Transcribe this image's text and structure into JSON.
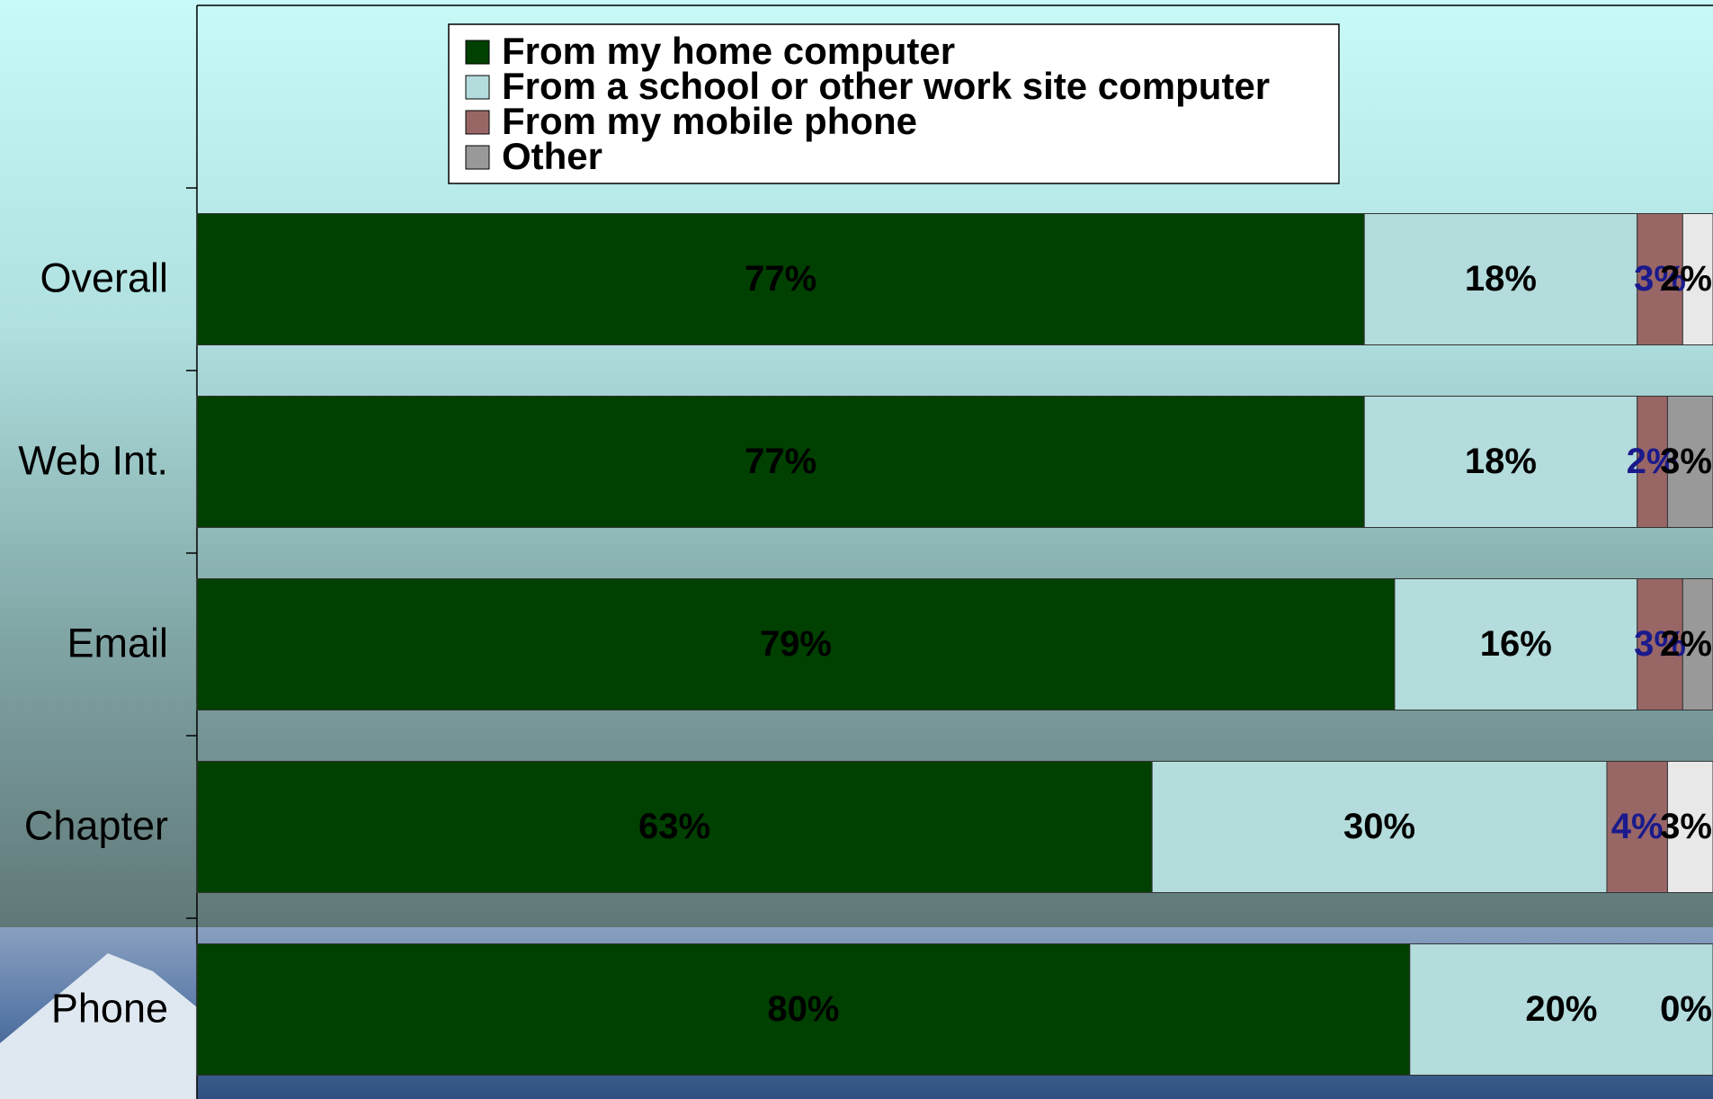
{
  "chart_data": {
    "type": "stacked-bar-horizontal",
    "categories": [
      "Overall",
      "Web Int.",
      "Email",
      "Chapter",
      "Phone"
    ],
    "xlim": [
      0,
      100
    ],
    "legend": "top",
    "series": [
      {
        "name": "From my home computer",
        "color": "#004000",
        "label_color": "#000000",
        "values": [
          77,
          77,
          79,
          63,
          80
        ],
        "value_labels": [
          "77%",
          "77%",
          "79%",
          "63%",
          "80%"
        ]
      },
      {
        "name": "From a school or other work site computer",
        "color": "#b4dcdc",
        "label_color": "#000000",
        "values": [
          18,
          18,
          16,
          30,
          20
        ],
        "value_labels": [
          "18%",
          "18%",
          "16%",
          "30%",
          "20%"
        ]
      },
      {
        "name": "From my mobile phone",
        "color": "#996666",
        "label_color": "#1a1a8c",
        "values": [
          3,
          2,
          3,
          4,
          0
        ],
        "value_labels": [
          "3%",
          "2%",
          "3%",
          "4%",
          "0%"
        ]
      },
      {
        "name": "Other",
        "color": "#999999",
        "colors": [
          "#e8e8e8",
          "#999999",
          "#999999",
          "#e8e8e8",
          "#e8e8e8"
        ],
        "label_color": "#000000",
        "values": [
          2,
          3,
          2,
          3,
          0
        ],
        "value_labels": [
          "2%",
          "3%",
          "2%",
          "3%",
          "0%"
        ]
      }
    ]
  }
}
